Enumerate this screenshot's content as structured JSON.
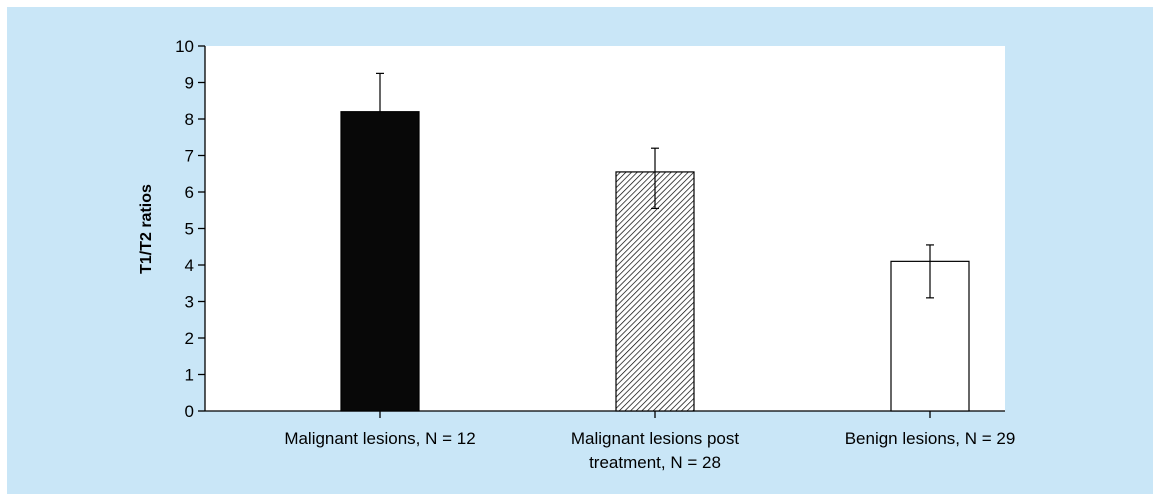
{
  "colors": {
    "background": "#c9e6f7",
    "plot_area": "#ffffff",
    "axis": "#000000",
    "text": "#000000"
  },
  "chart_data": {
    "type": "bar",
    "title": "",
    "xlabel": "",
    "ylabel": "T1/T2 ratios",
    "ylim": [
      0,
      10
    ],
    "yticks": [
      0,
      1,
      2,
      3,
      4,
      5,
      6,
      7,
      8,
      9,
      10
    ],
    "grid": false,
    "legend": "none",
    "categories": [
      [
        "Malignant lesions, N = 12"
      ],
      [
        "Malignant lesions post",
        "treatment, N = 28"
      ],
      [
        "Benign lesions, N = 29"
      ]
    ],
    "series": [
      {
        "values": [
          8.2,
          6.55,
          4.1
        ],
        "error_upper": [
          1.05,
          0.65,
          0.45
        ],
        "error_lower": [
          0,
          1.0,
          1.0
        ],
        "fills": [
          "solid-black",
          "hatched",
          "white"
        ]
      }
    ]
  }
}
